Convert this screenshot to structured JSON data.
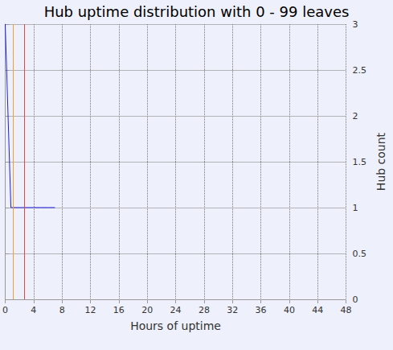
{
  "chart_data": {
    "type": "line",
    "title": "Hub uptime distribution with 0 - 99 leaves",
    "x_label": "Hours of uptime",
    "y_label": "Hub count",
    "series": [
      {
        "color": "#1f1fe0",
        "x": [
          0,
          0.8,
          2,
          3,
          4,
          5,
          6,
          7
        ],
        "values": [
          3,
          1,
          1,
          1,
          1,
          1,
          1,
          1
        ]
      }
    ],
    "vlines": [
      {
        "x": 1.1,
        "color": "#f0a030"
      },
      {
        "x": 2.7,
        "color": "#e04848"
      }
    ],
    "xlim": [
      0,
      48
    ],
    "xticks": [
      0,
      4,
      8,
      12,
      16,
      20,
      24,
      28,
      32,
      36,
      40,
      44,
      48
    ],
    "ylim": [
      0,
      3
    ],
    "yticks": [
      0,
      0.5,
      1,
      1.5,
      2,
      2.5,
      3
    ],
    "grid": true
  }
}
